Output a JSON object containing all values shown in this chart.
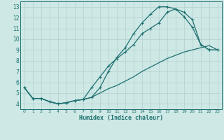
{
  "xlabel": "Humidex (Indice chaleur)",
  "bg_color": "#cde8e5",
  "line_color": "#1e7070",
  "grid_color": "#b8d4d2",
  "xlim": [
    -0.5,
    23.5
  ],
  "ylim": [
    3.5,
    13.5
  ],
  "xticks": [
    0,
    1,
    2,
    3,
    4,
    5,
    6,
    7,
    8,
    9,
    10,
    11,
    12,
    13,
    14,
    15,
    16,
    17,
    18,
    19,
    20,
    21,
    22,
    23
  ],
  "yticks": [
    4,
    5,
    6,
    7,
    8,
    9,
    10,
    11,
    12,
    13
  ],
  "line1_x": [
    0,
    1,
    2,
    3,
    4,
    5,
    6,
    7,
    8,
    9,
    10,
    11,
    12,
    13,
    14,
    15,
    16,
    17,
    18,
    19,
    20,
    21,
    22,
    23
  ],
  "line1_y": [
    5.5,
    4.5,
    4.5,
    4.2,
    4.0,
    4.1,
    4.3,
    4.4,
    4.6,
    5.5,
    7.0,
    8.3,
    9.2,
    10.5,
    11.5,
    12.3,
    13.0,
    13.0,
    12.8,
    12.1,
    11.1,
    9.5,
    9.0,
    9.0
  ],
  "line2_x": [
    0,
    1,
    2,
    3,
    4,
    5,
    6,
    7,
    8,
    9,
    10,
    11,
    12,
    13,
    14,
    15,
    16,
    17,
    18,
    19,
    20,
    21,
    22,
    23
  ],
  "line2_y": [
    5.5,
    4.5,
    4.5,
    4.2,
    4.0,
    4.1,
    4.3,
    4.4,
    5.5,
    6.5,
    7.5,
    8.2,
    8.8,
    9.5,
    10.5,
    11.0,
    11.5,
    12.5,
    12.8,
    12.5,
    11.8,
    9.5,
    9.0,
    9.0
  ],
  "line3_x": [
    0,
    1,
    2,
    3,
    4,
    5,
    6,
    7,
    8,
    9,
    10,
    11,
    12,
    13,
    14,
    15,
    16,
    17,
    18,
    19,
    20,
    21,
    22,
    23
  ],
  "line3_y": [
    5.5,
    4.5,
    4.5,
    4.2,
    4.0,
    4.1,
    4.3,
    4.4,
    4.6,
    5.0,
    5.4,
    5.7,
    6.1,
    6.5,
    7.0,
    7.4,
    7.8,
    8.2,
    8.5,
    8.8,
    9.0,
    9.2,
    9.4,
    9.0
  ],
  "marker_size": 2.5,
  "linewidth": 0.9,
  "tick_fontsize_x": 4.5,
  "tick_fontsize_y": 5.5,
  "xlabel_fontsize": 6.0
}
